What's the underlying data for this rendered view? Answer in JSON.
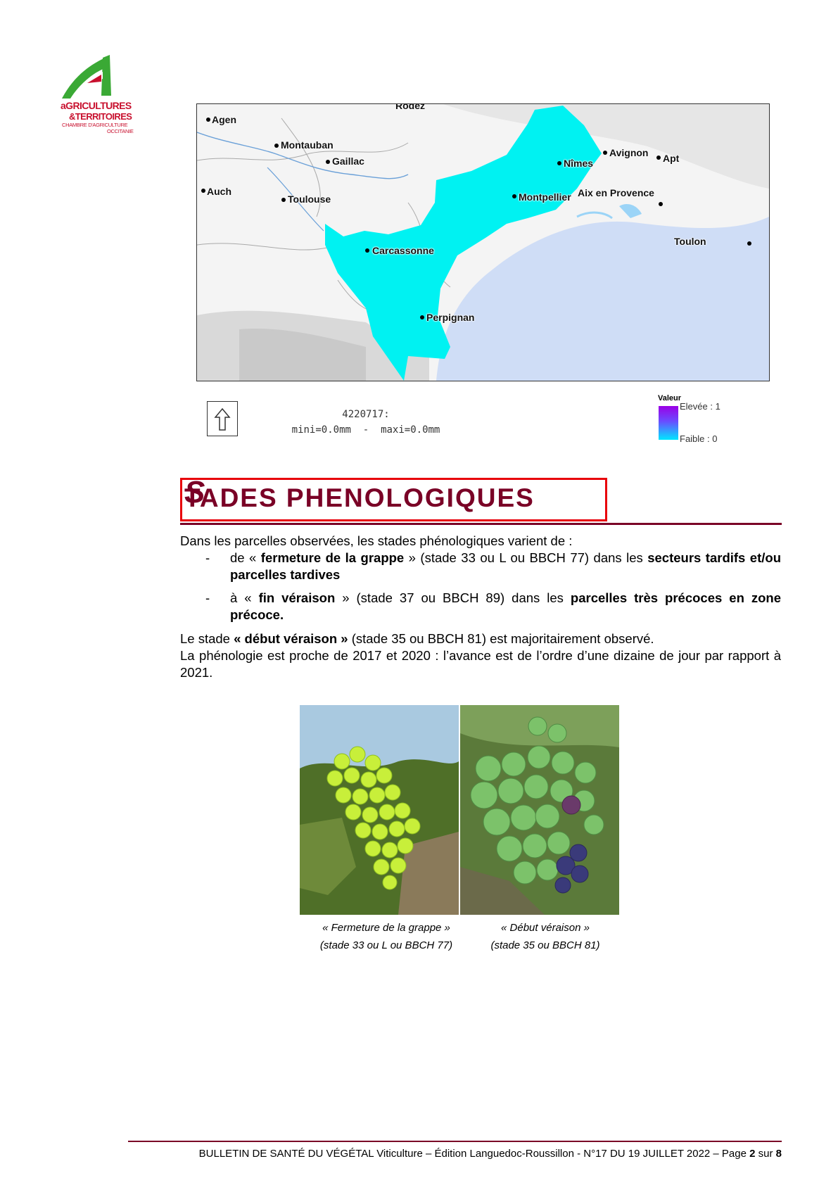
{
  "logo": {
    "line1": "aGRICULTURES",
    "line2": "&TERRITOIRES",
    "line3": "CHAMBRE D'AGRICULTURE",
    "line4": "OCCITANIE"
  },
  "map": {
    "cities": [
      "Rodez",
      "Agen",
      "Montauban",
      "Gaillac",
      "Avignon",
      "Apt",
      "Nîmes",
      "Auch",
      "Toulouse",
      "Montpellier",
      "Aix en Provence",
      "Toulon",
      "Carcassonne",
      "Perpignan"
    ],
    "region_color": "#00f2f2",
    "sea_color": "#cfddf6",
    "caption_line1": "4220717:",
    "caption_line2": "mini=0.0mm  -  maxi=0.0mm",
    "legend_title": "Valeur",
    "legend_high": "Elevée : 1",
    "legend_low": "Faible : 0"
  },
  "heading": {
    "first": "S",
    "rest": "TADES PHENOLOGIQUES",
    "color": "#7a0026",
    "box_color": "#e8000a"
  },
  "body": {
    "intro": "Dans les parcelles observées, les stades phénologiques varient de :",
    "item1": {
      "a": "de « ",
      "b": "fermeture de la grappe",
      "c": " » (stade 33 ou L ou BBCH 77) dans les ",
      "d": "secteurs tardifs et/ou parcelles tardives"
    },
    "item2": {
      "a": "à « ",
      "b": "fin véraison",
      "c": " » (stade 37 ou BBCH 89) dans les ",
      "d": "parcelles très précoces en zone précoce."
    },
    "p1": {
      "a": "Le stade ",
      "b": "« début véraison »",
      "c": " (stade 35 ou BBCH 81) est majoritairement observé."
    },
    "p2": "La phénologie est proche de 2017 et 2020 : l’avance est de l’ordre d’une dizaine de jour par rapport à 2021."
  },
  "photos": {
    "cap1_line1": "« Fermeture de la grappe »",
    "cap1_line2": "(stade 33 ou L ou BBCH 77)",
    "cap2_line1": "« Début véraison »",
    "cap2_line2": "(stade 35 ou BBCH 81)"
  },
  "footer": {
    "prefix": "BULLETIN DE SANTÉ DU VÉGÉTAL Viticulture – Édition Languedoc-Roussillon - N°17 DU 19 JUILLET 2022 – Page ",
    "page": "2",
    "sep": " sur ",
    "total": "8"
  }
}
